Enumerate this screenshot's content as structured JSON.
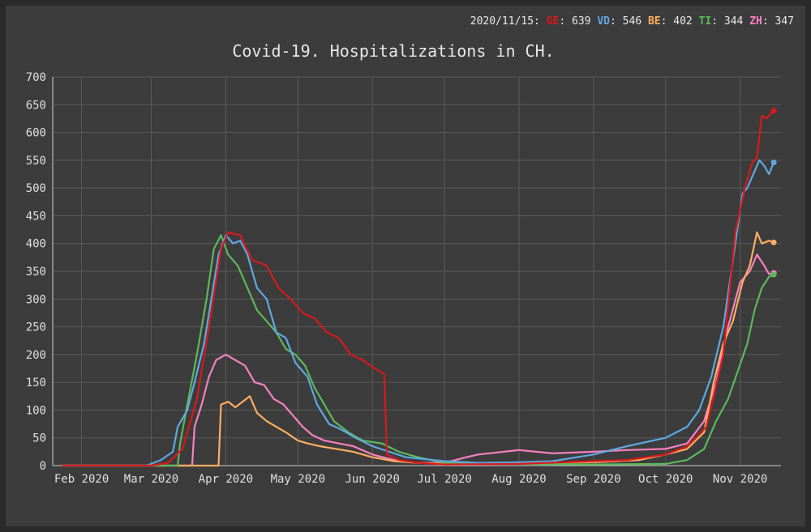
{
  "readout": {
    "date": "2020/11/15",
    "entries": [
      {
        "code": "GE",
        "value": "639",
        "color": "#d7191c"
      },
      {
        "code": "VD",
        "value": "546",
        "color": "#5fa8e0"
      },
      {
        "code": "BE",
        "value": "402",
        "color": "#fdae61"
      },
      {
        "code": "TI",
        "value": "344",
        "color": "#5cb85c"
      },
      {
        "code": "ZH",
        "value": "347",
        "color": "#f781bf"
      }
    ]
  },
  "chart_data": {
    "type": "line",
    "title": "Covid-19. Hospitalizations in CH.",
    "xlabel": "",
    "ylabel": "",
    "xlim": [
      "2020-01-20",
      "2020-11-18"
    ],
    "ylim": [
      0,
      700
    ],
    "yticks": [
      0,
      50,
      100,
      150,
      200,
      250,
      300,
      350,
      400,
      450,
      500,
      550,
      600,
      650,
      700
    ],
    "xticks": [
      "2020-02-01",
      "2020-03-01",
      "2020-04-01",
      "2020-05-01",
      "2020-06-01",
      "2020-07-01",
      "2020-08-01",
      "2020-09-01",
      "2020-10-01",
      "2020-11-01"
    ],
    "xtick_labels": [
      "Feb 2020",
      "Mar 2020",
      "Apr 2020",
      "May 2020",
      "Jun 2020",
      "Jul 2020",
      "Aug 2020",
      "Sep 2020",
      "Oct 2020",
      "Nov 2020"
    ],
    "grid": true,
    "series": [
      {
        "name": "GE",
        "color": "#d7191c",
        "points": [
          [
            "2020-01-24",
            0
          ],
          [
            "2020-03-01",
            0
          ],
          [
            "2020-03-08",
            5
          ],
          [
            "2020-03-14",
            30
          ],
          [
            "2020-03-20",
            120
          ],
          [
            "2020-03-25",
            250
          ],
          [
            "2020-03-30",
            390
          ],
          [
            "2020-04-02",
            420
          ],
          [
            "2020-04-07",
            415
          ],
          [
            "2020-04-12",
            370
          ],
          [
            "2020-04-18",
            360
          ],
          [
            "2020-04-23",
            320
          ],
          [
            "2020-04-28",
            300
          ],
          [
            "2020-05-03",
            275
          ],
          [
            "2020-05-08",
            265
          ],
          [
            "2020-05-13",
            240
          ],
          [
            "2020-05-18",
            230
          ],
          [
            "2020-05-23",
            200
          ],
          [
            "2020-05-28",
            190
          ],
          [
            "2020-06-02",
            175
          ],
          [
            "2020-06-06",
            165
          ],
          [
            "2020-06-07",
            20
          ],
          [
            "2020-06-12",
            10
          ],
          [
            "2020-06-20",
            5
          ],
          [
            "2020-07-01",
            2
          ],
          [
            "2020-08-01",
            3
          ],
          [
            "2020-09-01",
            8
          ],
          [
            "2020-09-15",
            10
          ],
          [
            "2020-10-01",
            20
          ],
          [
            "2020-10-10",
            35
          ],
          [
            "2020-10-18",
            70
          ],
          [
            "2020-10-25",
            200
          ],
          [
            "2020-10-30",
            420
          ],
          [
            "2020-11-03",
            500
          ],
          [
            "2020-11-06",
            545
          ],
          [
            "2020-11-08",
            555
          ],
          [
            "2020-11-10",
            630
          ],
          [
            "2020-11-12",
            625
          ],
          [
            "2020-11-14",
            635
          ],
          [
            "2020-11-15",
            639
          ]
        ]
      },
      {
        "name": "VD",
        "color": "#5fa8e0",
        "points": [
          [
            "2020-01-24",
            0
          ],
          [
            "2020-02-28",
            0
          ],
          [
            "2020-03-05",
            10
          ],
          [
            "2020-03-10",
            25
          ],
          [
            "2020-03-12",
            70
          ],
          [
            "2020-03-16",
            100
          ],
          [
            "2020-03-19",
            150
          ],
          [
            "2020-03-23",
            220
          ],
          [
            "2020-03-26",
            300
          ],
          [
            "2020-03-29",
            380
          ],
          [
            "2020-04-01",
            415
          ],
          [
            "2020-04-04",
            400
          ],
          [
            "2020-04-07",
            405
          ],
          [
            "2020-04-10",
            380
          ],
          [
            "2020-04-14",
            320
          ],
          [
            "2020-04-18",
            300
          ],
          [
            "2020-04-22",
            240
          ],
          [
            "2020-04-26",
            230
          ],
          [
            "2020-04-30",
            185
          ],
          [
            "2020-05-05",
            160
          ],
          [
            "2020-05-09",
            110
          ],
          [
            "2020-05-14",
            75
          ],
          [
            "2020-05-19",
            65
          ],
          [
            "2020-05-25",
            50
          ],
          [
            "2020-06-01",
            35
          ],
          [
            "2020-06-08",
            25
          ],
          [
            "2020-06-15",
            15
          ],
          [
            "2020-06-22",
            12
          ],
          [
            "2020-07-01",
            8
          ],
          [
            "2020-07-15",
            5
          ],
          [
            "2020-08-01",
            6
          ],
          [
            "2020-08-15",
            8
          ],
          [
            "2020-09-01",
            20
          ],
          [
            "2020-09-15",
            35
          ],
          [
            "2020-10-01",
            50
          ],
          [
            "2020-10-10",
            70
          ],
          [
            "2020-10-15",
            100
          ],
          [
            "2020-10-20",
            160
          ],
          [
            "2020-10-25",
            250
          ],
          [
            "2020-10-30",
            400
          ],
          [
            "2020-11-02",
            490
          ],
          [
            "2020-11-04",
            500
          ],
          [
            "2020-11-06",
            520
          ],
          [
            "2020-11-09",
            550
          ],
          [
            "2020-11-11",
            540
          ],
          [
            "2020-11-13",
            525
          ],
          [
            "2020-11-15",
            546
          ]
        ]
      },
      {
        "name": "BE",
        "color": "#fdae61",
        "points": [
          [
            "2020-01-24",
            0
          ],
          [
            "2020-03-29",
            0
          ],
          [
            "2020-03-30",
            110
          ],
          [
            "2020-04-02",
            115
          ],
          [
            "2020-04-05",
            105
          ],
          [
            "2020-04-08",
            115
          ],
          [
            "2020-04-11",
            125
          ],
          [
            "2020-04-14",
            95
          ],
          [
            "2020-04-18",
            80
          ],
          [
            "2020-04-22",
            70
          ],
          [
            "2020-04-26",
            60
          ],
          [
            "2020-05-01",
            45
          ],
          [
            "2020-05-05",
            40
          ],
          [
            "2020-05-10",
            35
          ],
          [
            "2020-05-17",
            30
          ],
          [
            "2020-05-24",
            25
          ],
          [
            "2020-06-01",
            15
          ],
          [
            "2020-06-10",
            8
          ],
          [
            "2020-06-20",
            5
          ],
          [
            "2020-07-01",
            3
          ],
          [
            "2020-08-01",
            5
          ],
          [
            "2020-09-01",
            6
          ],
          [
            "2020-09-20",
            10
          ],
          [
            "2020-10-01",
            20
          ],
          [
            "2020-10-10",
            30
          ],
          [
            "2020-10-17",
            60
          ],
          [
            "2020-10-21",
            150
          ],
          [
            "2020-10-25",
            220
          ],
          [
            "2020-10-29",
            260
          ],
          [
            "2020-11-02",
            330
          ],
          [
            "2020-11-05",
            360
          ],
          [
            "2020-11-08",
            420
          ],
          [
            "2020-11-10",
            400
          ],
          [
            "2020-11-13",
            405
          ],
          [
            "2020-11-15",
            402
          ]
        ]
      },
      {
        "name": "TI",
        "color": "#5cb85c",
        "points": [
          [
            "2020-01-24",
            0
          ],
          [
            "2020-03-12",
            0
          ],
          [
            "2020-03-13",
            40
          ],
          [
            "2020-03-16",
            110
          ],
          [
            "2020-03-20",
            200
          ],
          [
            "2020-03-24",
            300
          ],
          [
            "2020-03-27",
            390
          ],
          [
            "2020-03-30",
            415
          ],
          [
            "2020-04-02",
            380
          ],
          [
            "2020-04-06",
            360
          ],
          [
            "2020-04-10",
            320
          ],
          [
            "2020-04-14",
            280
          ],
          [
            "2020-04-18",
            260
          ],
          [
            "2020-04-22",
            240
          ],
          [
            "2020-04-26",
            210
          ],
          [
            "2020-04-30",
            200
          ],
          [
            "2020-05-04",
            180
          ],
          [
            "2020-05-08",
            140
          ],
          [
            "2020-05-12",
            110
          ],
          [
            "2020-05-16",
            80
          ],
          [
            "2020-05-22",
            60
          ],
          [
            "2020-05-28",
            45
          ],
          [
            "2020-06-05",
            40
          ],
          [
            "2020-06-12",
            25
          ],
          [
            "2020-06-20",
            15
          ],
          [
            "2020-07-01",
            5
          ],
          [
            "2020-08-01",
            3
          ],
          [
            "2020-09-01",
            2
          ],
          [
            "2020-10-01",
            3
          ],
          [
            "2020-10-10",
            10
          ],
          [
            "2020-10-17",
            30
          ],
          [
            "2020-10-22",
            80
          ],
          [
            "2020-10-27",
            120
          ],
          [
            "2020-10-31",
            170
          ],
          [
            "2020-11-04",
            220
          ],
          [
            "2020-11-07",
            280
          ],
          [
            "2020-11-10",
            320
          ],
          [
            "2020-11-13",
            340
          ],
          [
            "2020-11-15",
            344
          ]
        ]
      },
      {
        "name": "ZH",
        "color": "#f781bf",
        "points": [
          [
            "2020-01-24",
            0
          ],
          [
            "2020-03-18",
            0
          ],
          [
            "2020-03-19",
            70
          ],
          [
            "2020-03-22",
            110
          ],
          [
            "2020-03-25",
            160
          ],
          [
            "2020-03-28",
            190
          ],
          [
            "2020-04-01",
            200
          ],
          [
            "2020-04-05",
            190
          ],
          [
            "2020-04-09",
            180
          ],
          [
            "2020-04-13",
            150
          ],
          [
            "2020-04-17",
            145
          ],
          [
            "2020-04-21",
            120
          ],
          [
            "2020-04-25",
            110
          ],
          [
            "2020-04-29",
            90
          ],
          [
            "2020-05-03",
            70
          ],
          [
            "2020-05-07",
            55
          ],
          [
            "2020-05-12",
            45
          ],
          [
            "2020-05-18",
            40
          ],
          [
            "2020-05-24",
            35
          ],
          [
            "2020-06-01",
            20
          ],
          [
            "2020-06-10",
            10
          ],
          [
            "2020-06-20",
            5
          ],
          [
            "2020-07-01",
            5
          ],
          [
            "2020-07-10",
            15
          ],
          [
            "2020-07-15",
            20
          ],
          [
            "2020-08-01",
            28
          ],
          [
            "2020-08-15",
            22
          ],
          [
            "2020-09-01",
            25
          ],
          [
            "2020-09-15",
            28
          ],
          [
            "2020-10-01",
            30
          ],
          [
            "2020-10-10",
            40
          ],
          [
            "2020-10-17",
            80
          ],
          [
            "2020-10-22",
            150
          ],
          [
            "2020-10-27",
            250
          ],
          [
            "2020-11-01",
            330
          ],
          [
            "2020-11-05",
            350
          ],
          [
            "2020-11-08",
            380
          ],
          [
            "2020-11-11",
            360
          ],
          [
            "2020-11-13",
            345
          ],
          [
            "2020-11-15",
            347
          ]
        ]
      }
    ]
  }
}
